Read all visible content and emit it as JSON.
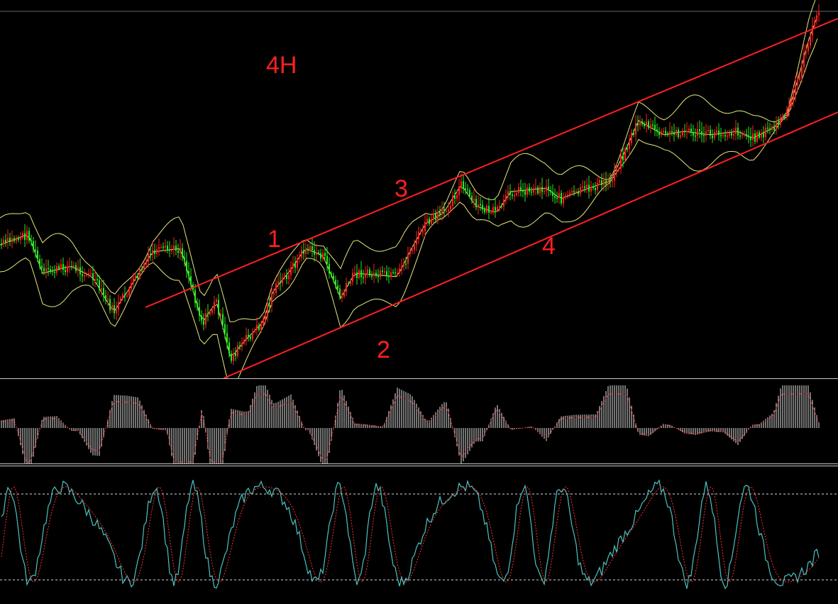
{
  "timeframe_label": "4H",
  "channel_labels": [
    "1",
    "2",
    "3",
    "4"
  ],
  "colors": {
    "background": "#000000",
    "bull_candle": "#ff2020",
    "bear_candle": "#22ee22",
    "bollinger": "#e8e87a",
    "channel": "#ff2020",
    "label_text": "#ff2020",
    "macd_hist": "#e6e6e6",
    "macd_signal": "#ff3030",
    "stoch_main": "#4cc3c3",
    "stoch_signal": "#ff3030",
    "separator": "#c8c8c8",
    "level_line": "#d8d8d8"
  },
  "chart_data": [
    {
      "type": "candlestick",
      "pane": "price",
      "trend": "rising channel",
      "overlays": [
        "bollinger_bands",
        "channel_lines"
      ]
    },
    {
      "type": "histogram",
      "pane": "macd",
      "series": [
        "histogram",
        "signal"
      ]
    },
    {
      "type": "line",
      "pane": "stochastic",
      "series": [
        "main",
        "signal"
      ],
      "levels": [
        80,
        20
      ],
      "ylim": [
        0,
        100
      ]
    }
  ]
}
